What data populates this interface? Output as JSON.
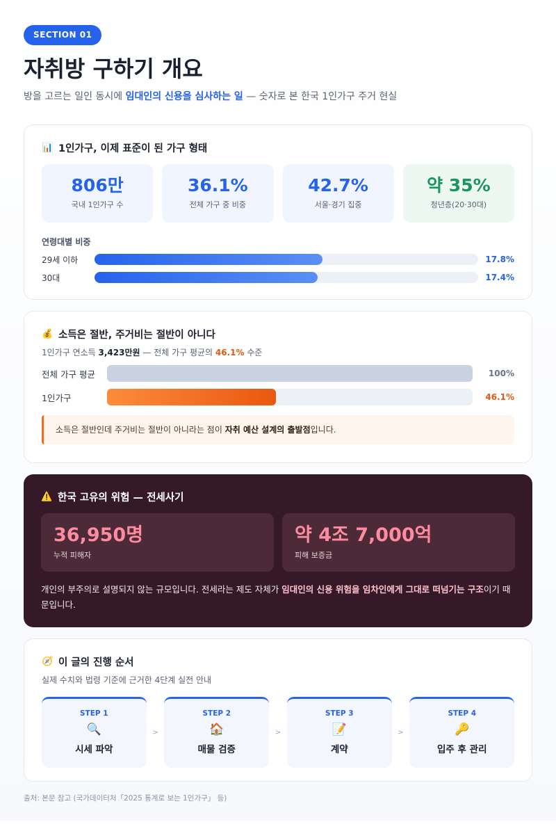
{
  "header": {
    "section": "SECTION 01",
    "title": "자취방 구하기 개요",
    "subtitle_pre": "방을 고르는 일인 동시에 ",
    "subtitle_hl": "임대인의 신용을 심사하는 일",
    "subtitle_post": " — 숫자로 본 한국 1인가구 주거 현실"
  },
  "single": {
    "icon": "bar-chart-icon",
    "title": "1인가구, 이제 표준이 된 가구 형태",
    "stats": [
      {
        "value": "806만",
        "label": "국내 1인가구 수"
      },
      {
        "value": "36.1%",
        "label": "전체 가구 중 비중"
      },
      {
        "value": "42.7%",
        "label": "서울·경기 집중"
      },
      {
        "value": "약 35%",
        "label": "청년층(20·30대)"
      }
    ],
    "age_title": "연령대별 비중",
    "ages": [
      {
        "label": "29세 이하",
        "value_text": "17.8%",
        "value": 17.8
      },
      {
        "label": "30대",
        "value_text": "17.4%",
        "value": 17.4
      }
    ],
    "bar_color": "#2563eb",
    "highlight_color": "#1a9460"
  },
  "income": {
    "icon": "money-bag-icon",
    "title": "소득은 절반, 주거비는 절반이 아니다",
    "sub_pre": "1인가구 연소득 ",
    "sub_bold": "3,423만원",
    "sub_mid": " — 전체 가구 평균의 ",
    "sub_pct": "46.1%",
    "sub_post": " 수준",
    "rows": [
      {
        "label": "전체 가구 평균",
        "value_text": "100%",
        "value": 100
      },
      {
        "label": "1인가구",
        "value_text": "46.1%",
        "value": 46.1
      }
    ],
    "callout_pre": "소득은 절반인데 주거비는 절반이 아니라는 점이 ",
    "callout_bold": "자취 예산 설계의 출발점",
    "callout_post": "입니다.",
    "accent_color": "#e05a10"
  },
  "risk": {
    "icon": "warning-icon",
    "title": "한국 고유의 위험 — 전세사기",
    "boxes": [
      {
        "value": "36,950명",
        "label": "누적 피해자"
      },
      {
        "value": "약 4조 7,000억",
        "label": "피해 보증금"
      }
    ],
    "text_pre": "개인의 부주의로 설명되지 않는 규모입니다. 전세라는 제도 자체가 ",
    "text_bold": "임대인의 신용 위험을 임차인에게 그대로 떠넘기는 구조",
    "text_post": "이기 때문입니다.",
    "bg_color": "#351927",
    "number_color": "#ff8ba0"
  },
  "steps": {
    "icon": "compass-icon",
    "title": "이 글의 진행 순서",
    "sub": "실제 수치와 법령 기준에 근거한 4단계 실전 안내",
    "items": [
      {
        "label": "STEP 1",
        "icon": "magnifier-icon",
        "glyph": "🔍",
        "name": "시세 파악"
      },
      {
        "label": "STEP 2",
        "icon": "house-icon",
        "glyph": "🏠",
        "name": "매물 검증"
      },
      {
        "label": "STEP 3",
        "icon": "memo-icon",
        "glyph": "📝",
        "name": "계약"
      },
      {
        "label": "STEP 4",
        "icon": "key-icon",
        "glyph": "🔑",
        "name": "입주 후 관리"
      }
    ],
    "arrow": ">"
  },
  "source": "출처: 본문 참고 (국가데이터처「2025 통계로 보는 1인가구」 등)"
}
